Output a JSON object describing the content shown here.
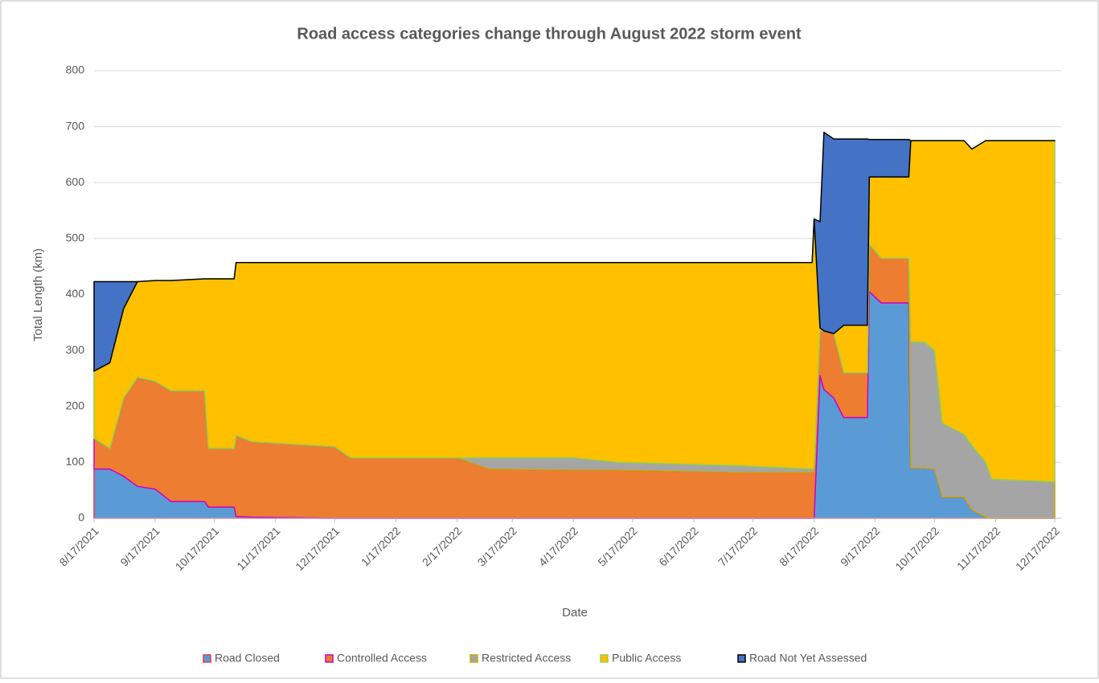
{
  "chart_data": {
    "type": "stacked_area",
    "title": "Road access categories change through August 2022 storm event",
    "xlabel": "Date",
    "ylabel": "Total Length (km)",
    "x": [
      "8/17/2021",
      "8/25/2021",
      "9/1/2021",
      "9/8/2021",
      "9/17/2021",
      "9/25/2021",
      "10/12/2021",
      "10/14/2021",
      "10/27/2021",
      "10/28/2021",
      "11/5/2021",
      "12/17/2021",
      "12/25/2021",
      "2/17/2022",
      "3/5/2022",
      "4/17/2022",
      "5/10/2022",
      "7/10/2022",
      "8/16/2022",
      "8/17/2022",
      "8/20/2022",
      "8/22/2022",
      "8/27/2022",
      "9/1/2022",
      "9/13/2022",
      "9/14/2022",
      "9/20/2022",
      "10/4/2022",
      "10/5/2022",
      "10/12/2022",
      "10/17/2022",
      "10/21/2022",
      "11/1/2022",
      "11/5/2022",
      "11/12/2022",
      "11/15/2022",
      "12/17/2022"
    ],
    "series": [
      {
        "name": "Road Closed",
        "color": "#5b9bd5",
        "border": "#e8384f",
        "values": [
          88,
          88,
          75,
          57,
          52,
          30,
          30,
          20,
          20,
          3,
          2,
          0,
          0,
          0,
          0,
          0,
          0,
          0,
          0,
          0,
          255,
          230,
          215,
          180,
          180,
          405,
          385,
          385,
          90,
          90,
          88,
          38,
          38,
          15,
          2,
          0,
          0
        ]
      },
      {
        "name": "Controlled Access",
        "color": "#ed7d31",
        "border": "#cc00cc",
        "values": [
          55,
          37,
          140,
          195,
          193,
          198,
          198,
          105,
          105,
          145,
          135,
          128,
          108,
          108,
          88,
          86,
          86,
          82,
          82,
          82,
          80,
          105,
          115,
          80,
          80,
          85,
          80,
          80,
          0,
          0,
          0,
          0,
          0,
          0,
          0,
          0,
          0
        ]
      },
      {
        "name": "Restricted Access",
        "color": "#a5a5a5",
        "border": "#c9a800",
        "values": [
          0,
          0,
          0,
          0,
          0,
          0,
          0,
          0,
          0,
          0,
          0,
          0,
          0,
          0,
          20,
          22,
          14,
          12,
          6,
          6,
          0,
          0,
          0,
          0,
          0,
          0,
          0,
          0,
          225,
          225,
          212,
          132,
          112,
          115,
          98,
          70,
          65
        ]
      },
      {
        "name": "Public Access",
        "color": "#ffc000",
        "border": "#92d050",
        "values": [
          120,
          153,
          160,
          171,
          180,
          197,
          200,
          303,
          303,
          309,
          320,
          329,
          349,
          349,
          349,
          349,
          357,
          363,
          369,
          447,
          5,
          0,
          0,
          85,
          85,
          120,
          145,
          145,
          360,
          360,
          375,
          505,
          525,
          530,
          575,
          605,
          610
        ]
      },
      {
        "name": "Road Not Yet Assessed",
        "color": "#4472c4",
        "border": "#000000",
        "values": [
          160,
          145,
          48,
          0,
          0,
          0,
          0,
          0,
          0,
          0,
          0,
          0,
          0,
          0,
          0,
          0,
          0,
          0,
          0,
          0,
          190,
          355,
          348,
          333,
          333,
          67,
          67,
          67,
          0,
          0,
          0,
          0,
          0,
          0,
          0,
          0,
          0
        ]
      }
    ],
    "xlim": [
      "8/17/2021",
      "12/17/2022"
    ],
    "xticks": [
      "8/17/2021",
      "9/17/2021",
      "10/17/2021",
      "11/17/2021",
      "12/17/2021",
      "1/17/2022",
      "2/17/2022",
      "3/17/2022",
      "4/17/2022",
      "5/17/2022",
      "6/17/2022",
      "7/17/2022",
      "8/17/2022",
      "9/17/2022",
      "10/17/2022",
      "11/17/2022",
      "12/17/2022"
    ],
    "ylim": [
      0,
      800
    ],
    "yticks": [
      0,
      100,
      200,
      300,
      400,
      500,
      600,
      700,
      800
    ],
    "grid": true,
    "legend": "bottom"
  }
}
